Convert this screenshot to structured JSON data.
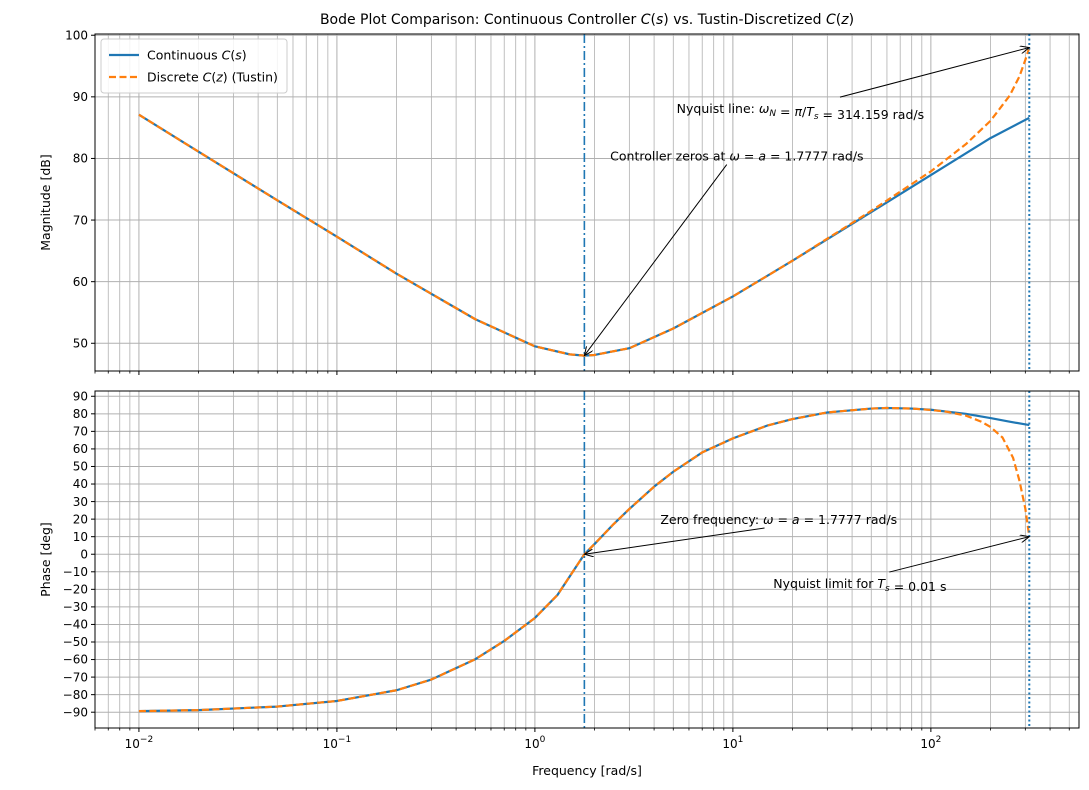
{
  "chart_data": [
    {
      "type": "line",
      "title": "Bode Plot Comparison: Continuous Controller C(s) vs. Tustin-Discretized C(z)",
      "xlabel": "",
      "ylabel": "Magnitude [dB]",
      "xscale": "log",
      "xlim": [
        0.006,
        560
      ],
      "ylim": [
        45.5,
        100.2
      ],
      "yticks": [
        50,
        60,
        70,
        80,
        90,
        100
      ],
      "xticks": [
        0.01,
        0.1,
        1,
        10,
        100
      ],
      "xtick_labels": [
        "",
        "",
        "",
        "",
        ""
      ],
      "grid": "on (major and minor)",
      "legend_placement": "upper-left",
      "series": [
        {
          "name": "Continuous C(s)",
          "color": "#1f77b4",
          "style": "solid",
          "x": [
            0.01,
            0.02,
            0.05,
            0.1,
            0.2,
            0.5,
            1,
            1.5,
            1.7777,
            2,
            3,
            5,
            10,
            20,
            50,
            100,
            200,
            314.159
          ],
          "y": [
            87.1,
            81.1,
            73.2,
            67.3,
            61.3,
            53.9,
            49.5,
            48.2,
            48.0,
            48.1,
            49.2,
            52.4,
            57.6,
            63.4,
            71.3,
            77.3,
            83.3,
            86.6
          ]
        },
        {
          "name": "Discrete C(z) (Tustin)",
          "color": "#ff7f0e",
          "style": "dashed",
          "x": [
            0.01,
            0.02,
            0.05,
            0.1,
            0.2,
            0.5,
            1,
            1.5,
            1.7777,
            2,
            3,
            5,
            10,
            20,
            50,
            100,
            150,
            200,
            250,
            280,
            300,
            314.159
          ],
          "y": [
            87.1,
            81.1,
            73.2,
            67.3,
            61.3,
            53.9,
            49.5,
            48.2,
            48.0,
            48.1,
            49.2,
            52.4,
            57.6,
            63.4,
            71.5,
            77.9,
            82.3,
            86.1,
            90.2,
            93.3,
            96.0,
            98.0
          ]
        }
      ],
      "vlines": [
        {
          "x": 1.7777,
          "color": "#1f77b4",
          "style": "dashdot"
        },
        {
          "x": 314.159,
          "color": "#1f77b4",
          "style": "dotted"
        }
      ],
      "annotations": [
        {
          "text": "Nyquist line: ωN = π/Ts = 314.159 rad/s",
          "text_x": 5.2,
          "text_y": 88,
          "arrow_x": 314.159,
          "arrow_y": 98
        },
        {
          "text": "Controller zeros at ω = a = 1.7777 rad/s",
          "text_x": 2.4,
          "text_y": 80.3,
          "arrow_x": 1.7777,
          "arrow_y": 48.0
        }
      ]
    },
    {
      "type": "line",
      "title": "",
      "xlabel": "Frequency [rad/s]",
      "ylabel": "Phase [deg]",
      "xscale": "log",
      "xlim": [
        0.006,
        560
      ],
      "ylim": [
        -99,
        93
      ],
      "yticks": [
        -90,
        -80,
        -70,
        -60,
        -50,
        -40,
        -30,
        -20,
        -10,
        0,
        10,
        20,
        30,
        40,
        50,
        60,
        70,
        80,
        90
      ],
      "xticks": [
        0.01,
        0.1,
        1,
        10,
        100
      ],
      "xtick_labels": [
        "10⁻²",
        "10⁻¹",
        "10⁰",
        "10¹",
        "10²"
      ],
      "grid": "on (major and minor)",
      "series": [
        {
          "name": "Continuous C(s)",
          "color": "#1f77b4",
          "style": "solid",
          "x": [
            0.01,
            0.02,
            0.05,
            0.1,
            0.2,
            0.3,
            0.5,
            0.7,
            1,
            1.3,
            1.7777,
            2,
            2.5,
            3,
            4,
            5,
            7,
            10,
            15,
            20,
            30,
            50,
            60,
            80,
            100,
            150,
            200,
            250,
            314.159
          ],
          "y": [
            -89.4,
            -88.8,
            -86.8,
            -83.6,
            -77.5,
            -71.4,
            -59.8,
            -49.4,
            -36.3,
            -23.2,
            0,
            5.8,
            17.2,
            25.8,
            38.5,
            47.0,
            58.0,
            66.0,
            73.4,
            77.0,
            80.8,
            83.0,
            83.3,
            83.0,
            82.3,
            80.0,
            77.6,
            75.5,
            73.6
          ]
        },
        {
          "name": "Discrete C(z) (Tustin)",
          "color": "#ff7f0e",
          "style": "dashed",
          "x": [
            0.01,
            0.02,
            0.05,
            0.1,
            0.2,
            0.3,
            0.5,
            0.7,
            1,
            1.3,
            1.7777,
            2,
            2.5,
            3,
            4,
            5,
            7,
            10,
            15,
            20,
            30,
            50,
            60,
            80,
            100,
            120,
            150,
            180,
            200,
            230,
            260,
            280,
            300,
            314.159
          ],
          "y": [
            -89.4,
            -88.8,
            -86.8,
            -83.6,
            -77.5,
            -71.4,
            -59.8,
            -49.4,
            -36.3,
            -23.2,
            0,
            5.8,
            17.2,
            25.8,
            38.5,
            47.0,
            58.0,
            66.0,
            73.4,
            77.0,
            80.8,
            83.0,
            83.3,
            83.0,
            82.2,
            81.2,
            79.0,
            75.5,
            72.5,
            66.5,
            55.0,
            42.0,
            26.0,
            10.0
          ]
        }
      ],
      "vlines": [
        {
          "x": 1.7777,
          "color": "#1f77b4",
          "style": "dashdot"
        },
        {
          "x": 314.159,
          "color": "#1f77b4",
          "style": "dotted"
        }
      ],
      "annotations": [
        {
          "text": "Zero frequency: ω = a = 1.7777 rad/s",
          "text_x": 4.3,
          "text_y": 19.5,
          "arrow_x": 1.7777,
          "arrow_y": 0
        },
        {
          "text": "Nyquist limit for Ts = 0.01 s",
          "text_x": 16,
          "text_y": -17,
          "arrow_x": 314.159,
          "arrow_y": 10
        }
      ]
    }
  ]
}
